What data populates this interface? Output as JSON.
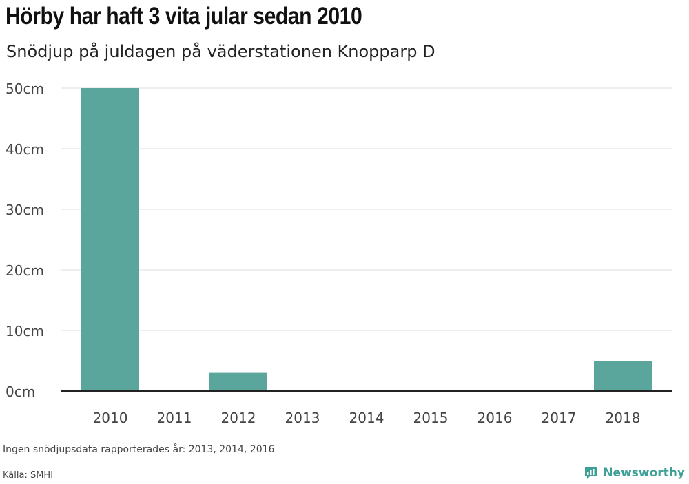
{
  "title": "Hörby har haft 3 vita jular sedan 2010",
  "subtitle": "Snödjup på juldagen på väderstationen Knopparp D",
  "note": "Ingen snödjupsdata rapporterades år: 2013, 2014, 2016",
  "source": "Källa: SMHI",
  "brand": {
    "name": "Newsworthy",
    "icon": "bar-chart-logo-icon",
    "color": "#3e9f97"
  },
  "colors": {
    "bar": "#5aa69d",
    "grid": "#dddddd",
    "axis": "#222222"
  },
  "chart_data": {
    "type": "bar",
    "categories": [
      "2010",
      "2011",
      "2012",
      "2013",
      "2014",
      "2015",
      "2016",
      "2017",
      "2018"
    ],
    "values": [
      50,
      0,
      3,
      0,
      0,
      0,
      0,
      0,
      5
    ],
    "ylim": [
      0,
      50
    ],
    "yticks": [
      0,
      10,
      20,
      30,
      40,
      50
    ],
    "ytick_labels": [
      "0cm",
      "10cm",
      "20cm",
      "30cm",
      "40cm",
      "50cm"
    ],
    "grid": true,
    "legend": "none"
  }
}
